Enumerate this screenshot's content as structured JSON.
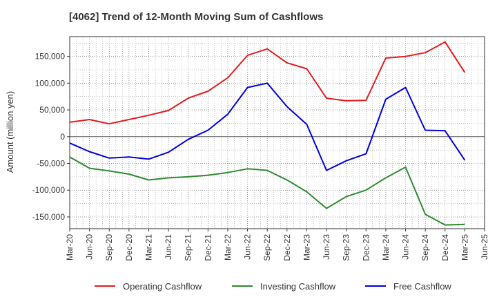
{
  "chart_data": {
    "type": "line",
    "title": "[4062]  Trend of 12-Month Moving Sum of Cashflows",
    "xlabel": "",
    "ylabel": "Amount (million yen)",
    "ylim": [
      -172000,
      187000
    ],
    "yticks": [
      -150000,
      -100000,
      -50000,
      0,
      50000,
      100000,
      150000
    ],
    "ytick_labels": [
      "-150,000",
      "-100,000",
      "-50,000",
      "0",
      "50,000",
      "100,000",
      "150,000"
    ],
    "x": [
      "Mar-20",
      "Jun-20",
      "Sep-20",
      "Dec-20",
      "Mar-21",
      "Jun-21",
      "Sep-21",
      "Dec-21",
      "Mar-22",
      "Jun-22",
      "Sep-22",
      "Dec-22",
      "Mar-23",
      "Jun-23",
      "Sep-23",
      "Dec-23",
      "Mar-24",
      "Jun-24",
      "Sep-24",
      "Dec-24",
      "Mar-25",
      "Jun-25"
    ],
    "grid": true,
    "legend_position": "bottom",
    "series": [
      {
        "name": "Operating Cashflow",
        "color": "#e41a1c",
        "values": [
          27000,
          32000,
          24000,
          32000,
          40000,
          49000,
          72000,
          85000,
          110000,
          152000,
          164000,
          138000,
          127000,
          72000,
          67000,
          68000,
          147000,
          150000,
          157000,
          177000,
          120000,
          null
        ]
      },
      {
        "name": "Investing Cashflow",
        "color": "#2e8b2e",
        "values": [
          -38000,
          -59000,
          -64000,
          -70000,
          -81000,
          -77000,
          -75000,
          -72000,
          -67000,
          -60000,
          -63000,
          -81000,
          -103000,
          -134000,
          -112000,
          -100000,
          -77000,
          -57000,
          -145000,
          -165000,
          -164000,
          null
        ]
      },
      {
        "name": "Free Cashflow",
        "color": "#0000dd",
        "values": [
          -12000,
          -28000,
          -40000,
          -38000,
          -42000,
          -29000,
          -5000,
          12000,
          42000,
          92000,
          100000,
          56000,
          23000,
          -63000,
          -45000,
          -32000,
          70000,
          92000,
          12000,
          11000,
          -44000,
          null
        ]
      }
    ]
  }
}
